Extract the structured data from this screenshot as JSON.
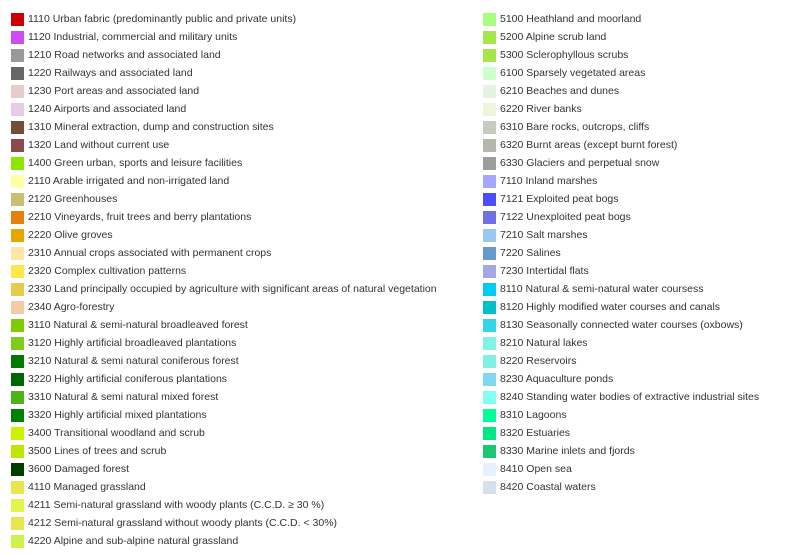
{
  "legend": {
    "left": [
      {
        "label": "1110 Urban fabric (predominantly public and private units)",
        "color": "#cc0000"
      },
      {
        "label": "1120 Industrial, commercial and military units",
        "color": "#cc4df2"
      },
      {
        "label": "1210 Road networks and associated land",
        "color": "#999999"
      },
      {
        "label": "1220 Railways and associated land",
        "color": "#666666"
      },
      {
        "label": "1230 Port areas and associated land",
        "color": "#e6cccc"
      },
      {
        "label": "1240 Airports and associated land",
        "color": "#e6cce6"
      },
      {
        "label": "1310 Mineral extraction, dump and construction sites",
        "color": "#734d37"
      },
      {
        "label": "1320 Land without current use",
        "color": "#8a4a4a"
      },
      {
        "label": "1400 Green urban, sports and leisure facilities",
        "color": "#8ce600"
      },
      {
        "label": "2110 Arable irrigated and non-irrigated land",
        "color": "#ffffa8"
      },
      {
        "label": "2120 Greenhouses",
        "color": "#c8c070"
      },
      {
        "label": "2210 Vineyards, fruit trees and berry plantations",
        "color": "#e6800d"
      },
      {
        "label": "2220 Olive groves",
        "color": "#e6a600"
      },
      {
        "label": "2310 Annual crops associated with permanent crops",
        "color": "#ffe6a6"
      },
      {
        "label": "2320 Complex cultivation patterns",
        "color": "#ffe64d"
      },
      {
        "label": "2330 Land principally occupied by agriculture with significant areas of natural vegetation",
        "color": "#e6cc4d"
      },
      {
        "label": "2340 Agro-forestry",
        "color": "#f2cca6"
      },
      {
        "label": "3110 Natural & semi-natural broadleaved forest",
        "color": "#80cc00"
      },
      {
        "label": "3120 Highly artificial broadleaved plantations",
        "color": "#80cc1a"
      },
      {
        "label": "3210 Natural & semi natural coniferous forest",
        "color": "#007a00"
      },
      {
        "label": "3220 Highly artificial coniferous plantations",
        "color": "#006600"
      },
      {
        "label": "3310 Natural & semi natural mixed forest",
        "color": "#4db31a"
      },
      {
        "label": "3320 Highly artificial mixed plantations",
        "color": "#008000"
      },
      {
        "label": "3400 Transitional woodland and scrub",
        "color": "#ccf200"
      },
      {
        "label": "3500 Lines of trees and scrub",
        "color": "#bfe600"
      },
      {
        "label": "3600 Damaged forest",
        "color": "#003d00"
      },
      {
        "label": "4110 Managed grassland",
        "color": "#e6e64d"
      },
      {
        "label": "4211 Semi-natural grassland with woody plants (C.C.D. ≥ 30 %)",
        "color": "#e6f24d"
      },
      {
        "label": "4212 Semi-natural grassland without woody plants (C.C.D. < 30%)",
        "color": "#e6e64d"
      },
      {
        "label": "4220 Alpine and sub-alpine natural grassland",
        "color": "#ccf24d"
      }
    ],
    "right": [
      {
        "label": "5100 Heathland and moorland",
        "color": "#a6ff80"
      },
      {
        "label": "5200 Alpine scrub land",
        "color": "#a6e64d"
      },
      {
        "label": "5300 Sclerophyllous scrubs",
        "color": "#a6e64d"
      },
      {
        "label": "6100 Sparsely vegetated areas",
        "color": "#ccffcc"
      },
      {
        "label": "6210 Beaches and dunes",
        "color": "#e6f2e0"
      },
      {
        "label": "6220 River banks",
        "color": "#eef5dd"
      },
      {
        "label": "6310 Bare rocks, outcrops, cliffs",
        "color": "#c4ccc0"
      },
      {
        "label": "6320 Burnt areas (except burnt forest)",
        "color": "#b4b8ac"
      },
      {
        "label": "6330 Glaciers and perpetual snow",
        "color": "#9a9e98"
      },
      {
        "label": "7110 Inland marshes",
        "color": "#a6a6ff"
      },
      {
        "label": "7121 Exploited peat bogs",
        "color": "#4d4dff"
      },
      {
        "label": "7122 Unexploited peat bogs",
        "color": "#7070e6"
      },
      {
        "label": "7210 Salt marshes",
        "color": "#99c8f0"
      },
      {
        "label": "7220 Salines",
        "color": "#6699cc"
      },
      {
        "label": "7230 Intertidal flats",
        "color": "#a6a6e6"
      },
      {
        "label": "8110 Natural & semi-natural water coursess",
        "color": "#00ccf2"
      },
      {
        "label": "8120 Highly modified water courses and canals",
        "color": "#00c0c8"
      },
      {
        "label": "8130 Seasonally connected water courses (oxbows)",
        "color": "#33d6e6"
      },
      {
        "label": "8210 Natural lakes",
        "color": "#80f2e6"
      },
      {
        "label": "8220 Reservoirs",
        "color": "#80f0e0"
      },
      {
        "label": "8230 Aquaculture ponds",
        "color": "#80d8f0"
      },
      {
        "label": "8240 Standing water bodies of extractive industrial sites",
        "color": "#80fff2"
      },
      {
        "label": "8310 Lagoons",
        "color": "#00ff99"
      },
      {
        "label": "8320 Estuaries",
        "color": "#00e680"
      },
      {
        "label": "8330 Marine inlets and fjords",
        "color": "#1ac873"
      },
      {
        "label": "8410 Open sea",
        "color": "#e6f0ff"
      },
      {
        "label": "8420 Coastal waters",
        "color": "#d6e0ea"
      }
    ]
  }
}
